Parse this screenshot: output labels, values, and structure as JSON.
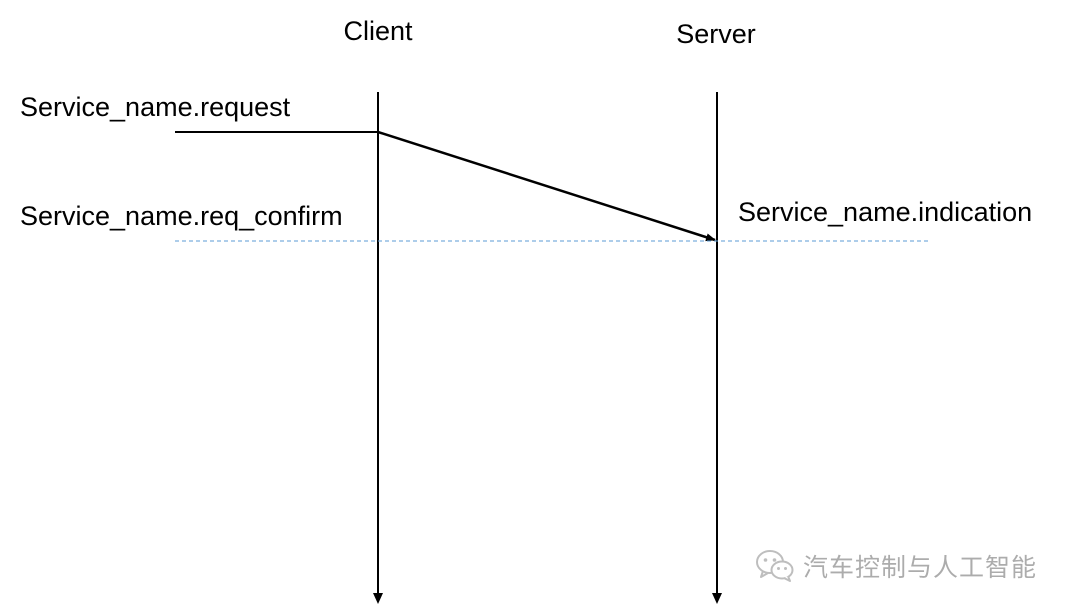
{
  "participants": {
    "client": "Client",
    "server": "Server"
  },
  "messages": {
    "request": "Service_name.request",
    "req_confirm": "Service_name.req_confirm",
    "indication": "Service_name.indication"
  },
  "watermark": {
    "icon": "wechat-icon",
    "text": "汽车控制与人工智能"
  },
  "colors": {
    "line": "#000000",
    "dashed": "#5b9bd5",
    "watermark": "#6a6a6a"
  }
}
